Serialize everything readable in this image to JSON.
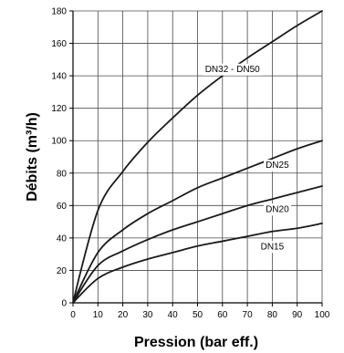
{
  "chart_data": {
    "type": "line",
    "title": "",
    "xlabel": "Pression (bar eff.)",
    "ylabel": "Débits (m³/h)",
    "xlim": [
      0,
      100
    ],
    "ylim": [
      0,
      180
    ],
    "x_ticks": [
      "0",
      "10",
      "20",
      "30",
      "40",
      "50",
      "60",
      "70",
      "80",
      "90",
      "100"
    ],
    "y_ticks": [
      "0",
      "20",
      "40",
      "60",
      "80",
      "100",
      "120",
      "140",
      "160",
      "180"
    ],
    "grid": true,
    "legend": "inline labels on curves",
    "colors": {
      "line": "#1a1a1a",
      "grid": "#4a4a4a",
      "axis": "#000000"
    },
    "series": [
      {
        "name": "DN32 - DN50",
        "x": [
          0,
          10,
          20,
          30,
          40,
          50,
          60,
          70,
          80,
          90,
          100
        ],
        "y": [
          0,
          57,
          81,
          99,
          114,
          128,
          140,
          151,
          161,
          171,
          180
        ]
      },
      {
        "name": "DN25",
        "x": [
          0,
          10,
          20,
          30,
          40,
          50,
          60,
          70,
          80,
          90,
          100
        ],
        "y": [
          0,
          31,
          45,
          55,
          63,
          71,
          77,
          83,
          89,
          95,
          100
        ]
      },
      {
        "name": "DN20",
        "x": [
          0,
          10,
          20,
          30,
          40,
          50,
          60,
          70,
          80,
          90,
          100
        ],
        "y": [
          0,
          23,
          32,
          39,
          45,
          50,
          55,
          60,
          64,
          68,
          72
        ]
      },
      {
        "name": "DN15",
        "x": [
          0,
          10,
          20,
          30,
          40,
          50,
          60,
          70,
          80,
          90,
          100
        ],
        "y": [
          0,
          15,
          22,
          27,
          31,
          35,
          38,
          41,
          44,
          46,
          49
        ]
      }
    ]
  }
}
